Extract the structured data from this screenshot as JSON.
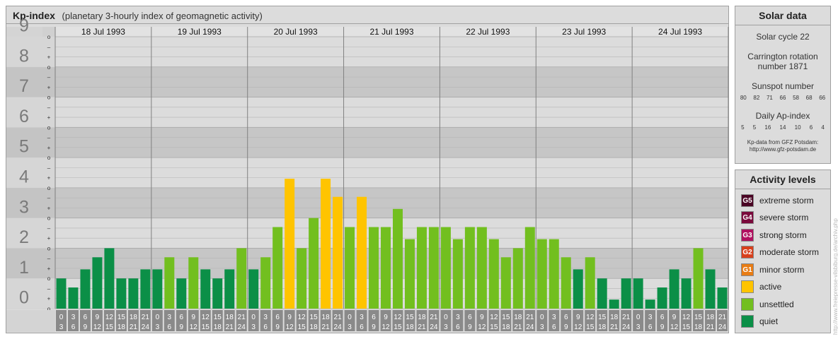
{
  "header": {
    "title": "Kp-index",
    "subtitle": "(planetary 3-hourly index of geomagnetic activity)"
  },
  "chart_data": {
    "type": "bar",
    "title": "Kp-index",
    "subtitle": "(planetary 3-hourly index of geomagnetic activity)",
    "ylim": [
      0,
      9
    ],
    "y_ticks": [
      "0",
      "1",
      "2",
      "3",
      "4",
      "5",
      "6",
      "7",
      "8",
      "9"
    ],
    "sub_ticks": [
      "+",
      "o",
      "–"
    ],
    "days": [
      "18 Jul 1993",
      "19 Jul 1993",
      "20 Jul 1993",
      "21 Jul 1993",
      "22 Jul 1993",
      "23 Jul 1993",
      "24 Jul 1993"
    ],
    "interval_start_hours": [
      "0",
      "3",
      "6",
      "9",
      "12",
      "15",
      "18",
      "21"
    ],
    "interval_end_hours": [
      "3",
      "6",
      "9",
      "12",
      "15",
      "18",
      "21",
      "24"
    ],
    "values": [
      [
        1.0,
        0.7,
        1.3,
        1.7,
        2.0,
        1.0,
        1.0,
        1.3
      ],
      [
        1.3,
        1.7,
        1.0,
        1.7,
        1.3,
        1.0,
        1.3,
        2.0
      ],
      [
        1.3,
        1.7,
        2.7,
        4.3,
        2.0,
        3.0,
        4.3,
        3.7
      ],
      [
        2.7,
        3.7,
        2.7,
        2.7,
        3.3,
        2.3,
        2.7,
        2.7
      ],
      [
        2.7,
        2.3,
        2.7,
        2.7,
        2.3,
        1.7,
        2.0,
        2.7
      ],
      [
        2.3,
        2.3,
        1.7,
        1.3,
        1.7,
        1.0,
        0.3,
        1.0
      ],
      [
        1.0,
        0.3,
        0.7,
        1.3,
        1.0,
        2.0,
        1.3,
        0.7
      ]
    ],
    "levels": [
      [
        0,
        0,
        0,
        0,
        0,
        0,
        0,
        0
      ],
      [
        0,
        1,
        0,
        1,
        0,
        0,
        0,
        1
      ],
      [
        0,
        1,
        1,
        2,
        1,
        1,
        2,
        2
      ],
      [
        1,
        2,
        1,
        1,
        1,
        1,
        1,
        1
      ],
      [
        1,
        1,
        1,
        1,
        1,
        1,
        1,
        1
      ],
      [
        1,
        1,
        1,
        0,
        1,
        0,
        0,
        0
      ],
      [
        0,
        0,
        0,
        0,
        0,
        1,
        0,
        0
      ]
    ],
    "colors": {
      "quiet": "#0b8f47",
      "unsettled": "#72bf1f",
      "active": "#ffc400",
      "band_dark": "#c6c6c6",
      "band_light": "#dcdcdc",
      "hour_box": "#8a8a8a"
    },
    "grid": true
  },
  "solar": {
    "heading": "Solar data",
    "cycle": "Solar cycle 22",
    "carrington_line1": "Carrington rotation",
    "carrington_line2": "number 1871",
    "sunspot_label": "Sunspot number",
    "sunspot_values": [
      "80",
      "82",
      "71",
      "66",
      "58",
      "68",
      "66"
    ],
    "ap_label": "Daily Ap-index",
    "ap_values": [
      "5",
      "5",
      "16",
      "14",
      "10",
      "6",
      "4"
    ],
    "source_line1": "Kp-data from GFZ Potsdam:",
    "source_line2": "http://www.gfz-potsdam.de"
  },
  "levels_panel": {
    "heading": "Activity levels",
    "items": [
      {
        "code": "G5",
        "label": "extreme storm",
        "color": "#4a0424"
      },
      {
        "code": "G4",
        "label": "severe storm",
        "color": "#7a0a3c"
      },
      {
        "code": "G3",
        "label": "strong storm",
        "color": "#b01060"
      },
      {
        "code": "G2",
        "label": "moderate storm",
        "color": "#d8401c"
      },
      {
        "code": "G1",
        "label": "minor storm",
        "color": "#e87c14"
      },
      {
        "code": "",
        "label": "active",
        "color": "#ffc400"
      },
      {
        "code": "",
        "label": "unsettled",
        "color": "#72bf1f"
      },
      {
        "code": "",
        "label": "quiet",
        "color": "#0b8f47"
      }
    ]
  },
  "watermark": "http://www.freiepresse-vilsbiburg.de/archiv.php"
}
